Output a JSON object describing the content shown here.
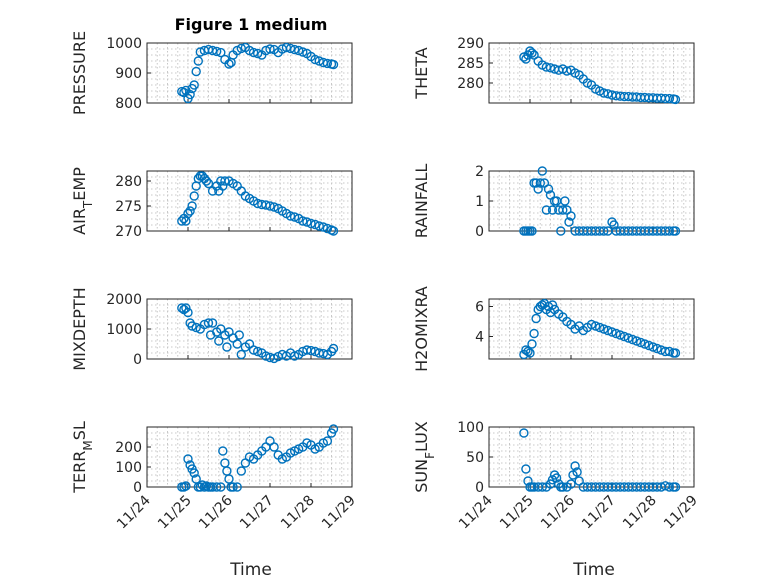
{
  "figure_title": "Figure 1 medium",
  "colors": {
    "marker": "#0072BD",
    "axis": "#262626",
    "grid": "#c8c8c8"
  },
  "x_tick_labels": [
    "11/24",
    "11/25",
    "11/26",
    "11/27",
    "11/28",
    "11/29"
  ],
  "x_label": "Time",
  "chart_data": [
    {
      "type": "scatter",
      "ylabel": "PRESSURE",
      "ylim": [
        800,
        1000
      ],
      "yticks": [
        800,
        900,
        1000
      ],
      "xlim": [
        0,
        5
      ],
      "grid": true,
      "x": [
        0.85,
        0.9,
        0.95,
        1.0,
        1.05,
        1.1,
        1.15,
        1.2,
        1.25,
        1.3,
        1.4,
        1.5,
        1.6,
        1.7,
        1.8,
        1.9,
        2.0,
        2.05,
        2.1,
        2.2,
        2.3,
        2.4,
        2.5,
        2.6,
        2.7,
        2.8,
        2.9,
        3.0,
        3.1,
        3.2,
        3.3,
        3.4,
        3.5,
        3.6,
        3.7,
        3.8,
        3.9,
        4.0,
        4.1,
        4.2,
        4.3,
        4.4,
        4.5,
        4.55
      ],
      "y": [
        838,
        835,
        842,
        815,
        828,
        848,
        860,
        905,
        940,
        970,
        975,
        978,
        975,
        972,
        968,
        945,
        930,
        935,
        960,
        975,
        982,
        985,
        975,
        968,
        965,
        960,
        975,
        980,
        978,
        968,
        980,
        985,
        982,
        978,
        975,
        970,
        965,
        955,
        945,
        940,
        935,
        932,
        930,
        928
      ]
    },
    {
      "type": "scatter",
      "ylabel": "THETA",
      "ylim": [
        275,
        290
      ],
      "yticks": [
        280,
        285,
        290
      ],
      "xlim": [
        0,
        5
      ],
      "grid": true,
      "x": [
        0.85,
        0.9,
        0.95,
        1.0,
        1.05,
        1.1,
        1.2,
        1.3,
        1.4,
        1.5,
        1.6,
        1.7,
        1.8,
        1.9,
        2.0,
        2.1,
        2.2,
        2.3,
        2.4,
        2.5,
        2.6,
        2.7,
        2.8,
        2.9,
        3.0,
        3.1,
        3.2,
        3.3,
        3.4,
        3.5,
        3.6,
        3.7,
        3.8,
        3.9,
        4.0,
        4.1,
        4.2,
        4.3,
        4.4,
        4.5,
        4.55
      ],
      "y": [
        286.5,
        286.0,
        287.0,
        288.0,
        287.5,
        287.0,
        285.5,
        284.5,
        284.0,
        283.8,
        283.5,
        283.2,
        283.5,
        283.0,
        283.2,
        282.5,
        282.0,
        281.0,
        280.0,
        279.5,
        278.5,
        278.0,
        277.5,
        277.3,
        277.0,
        276.8,
        276.7,
        276.6,
        276.6,
        276.5,
        276.5,
        276.4,
        276.4,
        276.3,
        276.3,
        276.2,
        276.2,
        276.1,
        276.1,
        276.0,
        275.9
      ]
    },
    {
      "type": "scatter",
      "ylabel": "AIR_TEMP",
      "ylim": [
        270,
        282
      ],
      "yticks": [
        270,
        275,
        280
      ],
      "xlim": [
        0,
        5
      ],
      "grid": true,
      "x": [
        0.85,
        0.9,
        0.95,
        1.0,
        1.05,
        1.1,
        1.15,
        1.2,
        1.25,
        1.3,
        1.35,
        1.4,
        1.45,
        1.5,
        1.6,
        1.7,
        1.75,
        1.8,
        1.85,
        1.9,
        2.0,
        2.1,
        2.2,
        2.3,
        2.4,
        2.5,
        2.6,
        2.7,
        2.8,
        2.9,
        3.0,
        3.1,
        3.2,
        3.3,
        3.4,
        3.5,
        3.6,
        3.7,
        3.8,
        3.9,
        4.0,
        4.1,
        4.2,
        4.3,
        4.4,
        4.5,
        4.55
      ],
      "y": [
        272.0,
        272.5,
        272.0,
        273.5,
        274.0,
        275.0,
        277.0,
        279.0,
        280.5,
        281.0,
        281.0,
        280.5,
        280.0,
        279.5,
        278.0,
        279.0,
        278.0,
        280.0,
        279.0,
        280.0,
        280.0,
        279.5,
        279.0,
        278.0,
        277.0,
        276.5,
        276.0,
        275.5,
        275.3,
        275.2,
        275.0,
        274.8,
        274.5,
        274.0,
        273.5,
        273.0,
        272.8,
        272.5,
        272.0,
        271.8,
        271.5,
        271.3,
        271.0,
        270.8,
        270.5,
        270.2,
        270.0
      ]
    },
    {
      "type": "scatter",
      "ylabel": "RAINFALL",
      "ylim": [
        0,
        2
      ],
      "yticks": [
        0,
        1,
        2
      ],
      "xlim": [
        0,
        5
      ],
      "grid": true,
      "x": [
        0.85,
        0.9,
        0.95,
        1.0,
        1.05,
        1.1,
        1.15,
        1.2,
        1.25,
        1.3,
        1.35,
        1.4,
        1.45,
        1.5,
        1.55,
        1.6,
        1.65,
        1.7,
        1.75,
        1.8,
        1.85,
        1.9,
        1.95,
        2.0,
        2.1,
        2.2,
        2.3,
        2.4,
        2.5,
        2.6,
        2.7,
        2.8,
        2.9,
        3.0,
        3.05,
        3.1,
        3.2,
        3.3,
        3.4,
        3.5,
        3.6,
        3.7,
        3.8,
        3.9,
        4.0,
        4.1,
        4.2,
        4.3,
        4.4,
        4.5,
        4.55
      ],
      "y": [
        0,
        0,
        0,
        0,
        0,
        1.6,
        1.6,
        1.4,
        1.6,
        2.0,
        1.6,
        0.7,
        1.4,
        1.2,
        0.7,
        1.0,
        1.0,
        0.7,
        0.0,
        0.7,
        1.0,
        0.7,
        0.3,
        0.5,
        0,
        0,
        0,
        0,
        0,
        0,
        0,
        0,
        0,
        0.3,
        0.2,
        0,
        0,
        0,
        0,
        0,
        0,
        0,
        0,
        0,
        0,
        0,
        0,
        0,
        0,
        0,
        0
      ]
    },
    {
      "type": "scatter",
      "ylabel": "MIXDEPTH",
      "ylim": [
        0,
        2000
      ],
      "yticks": [
        0,
        1000,
        2000
      ],
      "xlim": [
        0,
        5
      ],
      "grid": true,
      "x": [
        0.85,
        0.9,
        0.95,
        1.0,
        1.05,
        1.1,
        1.2,
        1.3,
        1.4,
        1.5,
        1.55,
        1.6,
        1.7,
        1.75,
        1.8,
        1.9,
        1.95,
        2.0,
        2.1,
        2.2,
        2.25,
        2.3,
        2.4,
        2.5,
        2.6,
        2.7,
        2.8,
        2.9,
        3.0,
        3.1,
        3.2,
        3.3,
        3.4,
        3.5,
        3.6,
        3.7,
        3.8,
        3.9,
        4.0,
        4.1,
        4.2,
        4.3,
        4.4,
        4.5,
        4.55
      ],
      "y": [
        1700,
        1650,
        1700,
        1550,
        1200,
        1100,
        1050,
        1000,
        1150,
        1200,
        800,
        1200,
        900,
        600,
        1000,
        800,
        400,
        900,
        700,
        500,
        800,
        150,
        400,
        500,
        300,
        250,
        200,
        100,
        50,
        20,
        80,
        150,
        100,
        200,
        100,
        150,
        250,
        300,
        280,
        250,
        200,
        180,
        150,
        250,
        350
      ]
    },
    {
      "type": "scatter",
      "ylabel": "H2OMIXRA",
      "ylim": [
        2.5,
        6.5
      ],
      "yticks": [
        4,
        6
      ],
      "xlim": [
        0,
        5
      ],
      "grid": true,
      "x": [
        0.85,
        0.9,
        0.95,
        1.0,
        1.05,
        1.1,
        1.15,
        1.2,
        1.25,
        1.3,
        1.35,
        1.4,
        1.45,
        1.5,
        1.55,
        1.6,
        1.7,
        1.8,
        1.9,
        2.0,
        2.1,
        2.2,
        2.3,
        2.4,
        2.5,
        2.6,
        2.7,
        2.8,
        2.9,
        3.0,
        3.1,
        3.2,
        3.3,
        3.4,
        3.5,
        3.6,
        3.7,
        3.8,
        3.9,
        4.0,
        4.1,
        4.2,
        4.3,
        4.4,
        4.5,
        4.55
      ],
      "y": [
        2.8,
        3.1,
        3.0,
        2.9,
        3.5,
        4.2,
        5.2,
        5.8,
        6.0,
        6.1,
        6.2,
        5.8,
        6.0,
        5.6,
        6.1,
        5.8,
        5.5,
        5.3,
        5.0,
        4.8,
        4.5,
        4.7,
        4.4,
        4.6,
        4.8,
        4.7,
        4.6,
        4.5,
        4.4,
        4.3,
        4.2,
        4.1,
        4.0,
        3.9,
        3.8,
        3.7,
        3.6,
        3.5,
        3.4,
        3.3,
        3.2,
        3.1,
        3.0,
        3.0,
        2.9,
        2.9
      ]
    },
    {
      "type": "scatter",
      "ylabel": "TERR_MSL",
      "ylim": [
        0,
        300
      ],
      "yticks": [
        0,
        100,
        200
      ],
      "xlim": [
        0,
        5
      ],
      "grid": true,
      "x": [
        0.85,
        0.9,
        0.95,
        1.0,
        1.05,
        1.1,
        1.15,
        1.2,
        1.25,
        1.3,
        1.35,
        1.4,
        1.45,
        1.5,
        1.55,
        1.6,
        1.7,
        1.8,
        1.85,
        1.9,
        1.95,
        2.0,
        2.05,
        2.1,
        2.2,
        2.3,
        2.4,
        2.5,
        2.6,
        2.7,
        2.8,
        2.9,
        3.0,
        3.1,
        3.2,
        3.3,
        3.4,
        3.5,
        3.6,
        3.7,
        3.8,
        3.9,
        4.0,
        4.1,
        4.2,
        4.3,
        4.4,
        4.5,
        4.55
      ],
      "y": [
        0,
        0,
        5,
        140,
        110,
        90,
        70,
        40,
        0,
        0,
        10,
        0,
        5,
        0,
        0,
        0,
        0,
        0,
        180,
        120,
        80,
        40,
        0,
        0,
        0,
        80,
        120,
        150,
        140,
        160,
        180,
        200,
        230,
        200,
        160,
        140,
        150,
        170,
        180,
        190,
        200,
        220,
        210,
        190,
        200,
        220,
        230,
        270,
        290
      ]
    },
    {
      "type": "scatter",
      "ylabel": "SUN_FLUX",
      "ylim": [
        0,
        100
      ],
      "yticks": [
        0,
        50,
        100
      ],
      "xlim": [
        0,
        5
      ],
      "grid": true,
      "x": [
        0.85,
        0.9,
        0.95,
        1.0,
        1.05,
        1.1,
        1.2,
        1.3,
        1.4,
        1.5,
        1.55,
        1.6,
        1.65,
        1.7,
        1.75,
        1.8,
        1.9,
        2.0,
        2.05,
        2.1,
        2.15,
        2.2,
        2.3,
        2.4,
        2.5,
        2.6,
        2.7,
        2.8,
        2.9,
        3.0,
        3.1,
        3.2,
        3.3,
        3.4,
        3.5,
        3.6,
        3.7,
        3.8,
        3.9,
        4.0,
        4.1,
        4.2,
        4.3,
        4.4,
        4.5,
        4.55
      ],
      "y": [
        90,
        30,
        10,
        0,
        0,
        0,
        0,
        0,
        0,
        5,
        12,
        20,
        15,
        5,
        0,
        0,
        0,
        5,
        20,
        35,
        25,
        10,
        0,
        0,
        0,
        0,
        0,
        0,
        0,
        0,
        0,
        0,
        0,
        0,
        0,
        0,
        0,
        0,
        0,
        0,
        0,
        0,
        2,
        0,
        0,
        0
      ]
    }
  ]
}
